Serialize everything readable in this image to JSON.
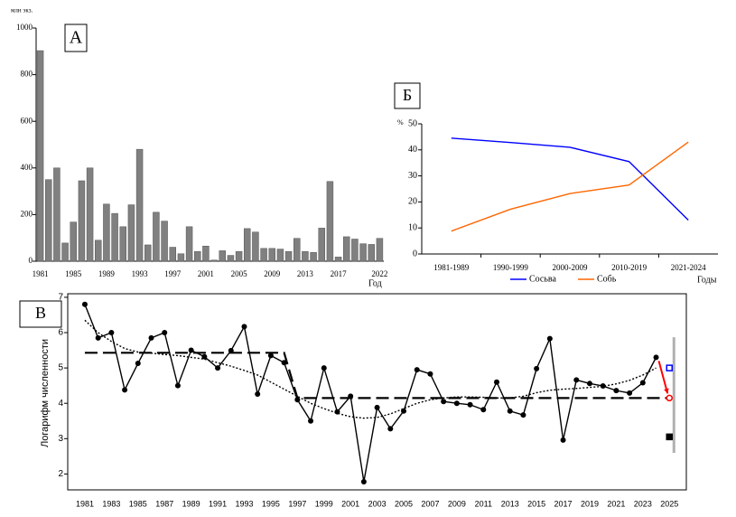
{
  "chart_data": [
    {
      "type": "bar",
      "panel_label": "А",
      "y_label": "млн экз.",
      "x_label": "Год",
      "color": "#808080",
      "categories": [
        "1981",
        null,
        null,
        null,
        "1985",
        null,
        null,
        null,
        "1989",
        null,
        null,
        null,
        "1993",
        null,
        null,
        null,
        "1997",
        null,
        null,
        null,
        "2001",
        null,
        null,
        null,
        "2005",
        null,
        null,
        null,
        "2009",
        null,
        null,
        null,
        "2013",
        null,
        null,
        null,
        "2017",
        null,
        null,
        null,
        null,
        "2022"
      ],
      "values": [
        903,
        350,
        400,
        78,
        168,
        345,
        400,
        90,
        245,
        205,
        148,
        242,
        480,
        70,
        210,
        172,
        60,
        32,
        148,
        42,
        65,
        5,
        45,
        25,
        42,
        140,
        125,
        55,
        55,
        52,
        42,
        98,
        42,
        38,
        142,
        342,
        18,
        105,
        95,
        75,
        72,
        98
      ],
      "ylim": [
        0,
        1000
      ],
      "yticks": [
        0,
        200,
        400,
        600,
        800,
        1000
      ]
    },
    {
      "type": "line",
      "panel_label": "Б",
      "y_label": "%",
      "x_label": "Годы",
      "legend": "bottom",
      "categories": [
        "1981-1989",
        "1990-1999",
        "2000-2009",
        "2010-2019",
        "2021-2024"
      ],
      "series": [
        {
          "name": "Сосьва",
          "color": "#0000ff",
          "values": [
            44.5,
            42.8,
            41,
            35.5,
            13
          ]
        },
        {
          "name": "Собь",
          "color": "#ff6600",
          "values": [
            8.8,
            17.2,
            23.2,
            26.5,
            43
          ]
        }
      ],
      "ylim": [
        0,
        50
      ],
      "yticks": [
        0,
        10,
        20,
        30,
        40,
        50
      ]
    },
    {
      "type": "line",
      "panel_label": "В",
      "y_label": "Логарифм численности",
      "categories": [
        "1981",
        null,
        "1983",
        null,
        "1985",
        null,
        "1987",
        null,
        "1989",
        null,
        "1991",
        null,
        "1993",
        null,
        "1995",
        null,
        "1997",
        null,
        "1999",
        null,
        "2001",
        null,
        "2003",
        null,
        "2005",
        null,
        "2007",
        null,
        "2009",
        null,
        "2011",
        null,
        "2013",
        null,
        "2015",
        null,
        "2017",
        null,
        "2019",
        null,
        "2021",
        null,
        "2023",
        null,
        "2025"
      ],
      "series": [
        {
          "color": "#000000",
          "style": "solid",
          "marker": true,
          "values": [
            6.8,
            5.85,
            6.0,
            4.38,
            5.13,
            5.85,
            6.0,
            4.5,
            5.5,
            5.32,
            5.0,
            5.49,
            6.17,
            4.26,
            5.35,
            5.15,
            4.1,
            3.5,
            5.0,
            3.76,
            4.2,
            1.78,
            3.88,
            3.28,
            3.78,
            4.95,
            4.83,
            4.05,
            4.0,
            3.96,
            3.82,
            4.6,
            3.78,
            3.67,
            4.98,
            5.83,
            2.96,
            4.66,
            4.56,
            4.49,
            4.36,
            4.29,
            4.58,
            5.3,
            null
          ]
        },
        {
          "color": "#000000",
          "style": "dashed",
          "values": [
            5.43,
            5.43,
            5.43,
            5.43,
            5.43,
            5.43,
            5.43,
            5.43,
            5.43,
            5.43,
            5.43,
            5.43,
            5.43,
            5.43,
            5.43,
            5.43,
            4.15,
            4.15,
            4.15,
            4.15,
            4.15,
            4.15,
            4.15,
            4.15,
            4.15,
            4.15,
            4.15,
            4.15,
            4.15,
            4.15,
            4.15,
            4.15,
            4.15,
            4.15,
            4.15,
            4.15,
            4.15,
            4.15,
            4.15,
            4.15,
            4.15,
            4.15,
            4.15,
            4.15,
            4.15
          ]
        },
        {
          "color": "#000000",
          "style": "dotted",
          "values": [
            6.35,
            6.0,
            5.75,
            5.55,
            5.45,
            5.42,
            5.38,
            5.35,
            5.3,
            5.25,
            5.15,
            5.05,
            4.93,
            4.8,
            4.6,
            4.4,
            4.2,
            4.0,
            3.85,
            3.72,
            3.62,
            3.58,
            3.6,
            3.7,
            3.85,
            4.0,
            4.1,
            4.15,
            4.18,
            4.18,
            4.17,
            4.15,
            4.15,
            4.2,
            4.3,
            4.37,
            4.4,
            4.42,
            4.45,
            4.48,
            4.55,
            4.65,
            4.8,
            5.0,
            null
          ]
        }
      ],
      "markers": [
        {
          "x": "2025",
          "value": 5.0,
          "shape": "square",
          "color": "#0000ff"
        },
        {
          "x": "2025",
          "value": 4.15,
          "shape": "circle",
          "color": "#ff0000"
        },
        {
          "x": "2025",
          "value": 3.05,
          "shape": "square",
          "color": "#000000"
        }
      ],
      "range_bar": {
        "x": "2025",
        "values": [
          2.6,
          5.87
        ],
        "color": "#b0b0b0"
      },
      "ylim": [
        1.55,
        7.1
      ],
      "yticks": [
        2,
        3,
        4,
        5,
        6,
        7
      ]
    }
  ]
}
